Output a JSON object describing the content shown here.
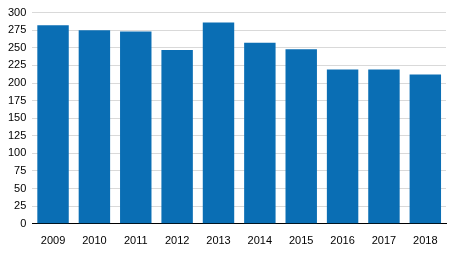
{
  "chart_data": {
    "type": "bar",
    "categories": [
      "2009",
      "2010",
      "2011",
      "2012",
      "2013",
      "2014",
      "2015",
      "2016",
      "2017",
      "2018"
    ],
    "values": [
      282,
      275,
      273,
      247,
      286,
      257,
      248,
      219,
      219,
      212
    ],
    "color": "#0a6eb4",
    "ylim": [
      0,
      300
    ],
    "yticks": [
      0,
      25,
      50,
      75,
      100,
      125,
      150,
      175,
      200,
      225,
      250,
      275,
      300
    ],
    "grid": true
  }
}
